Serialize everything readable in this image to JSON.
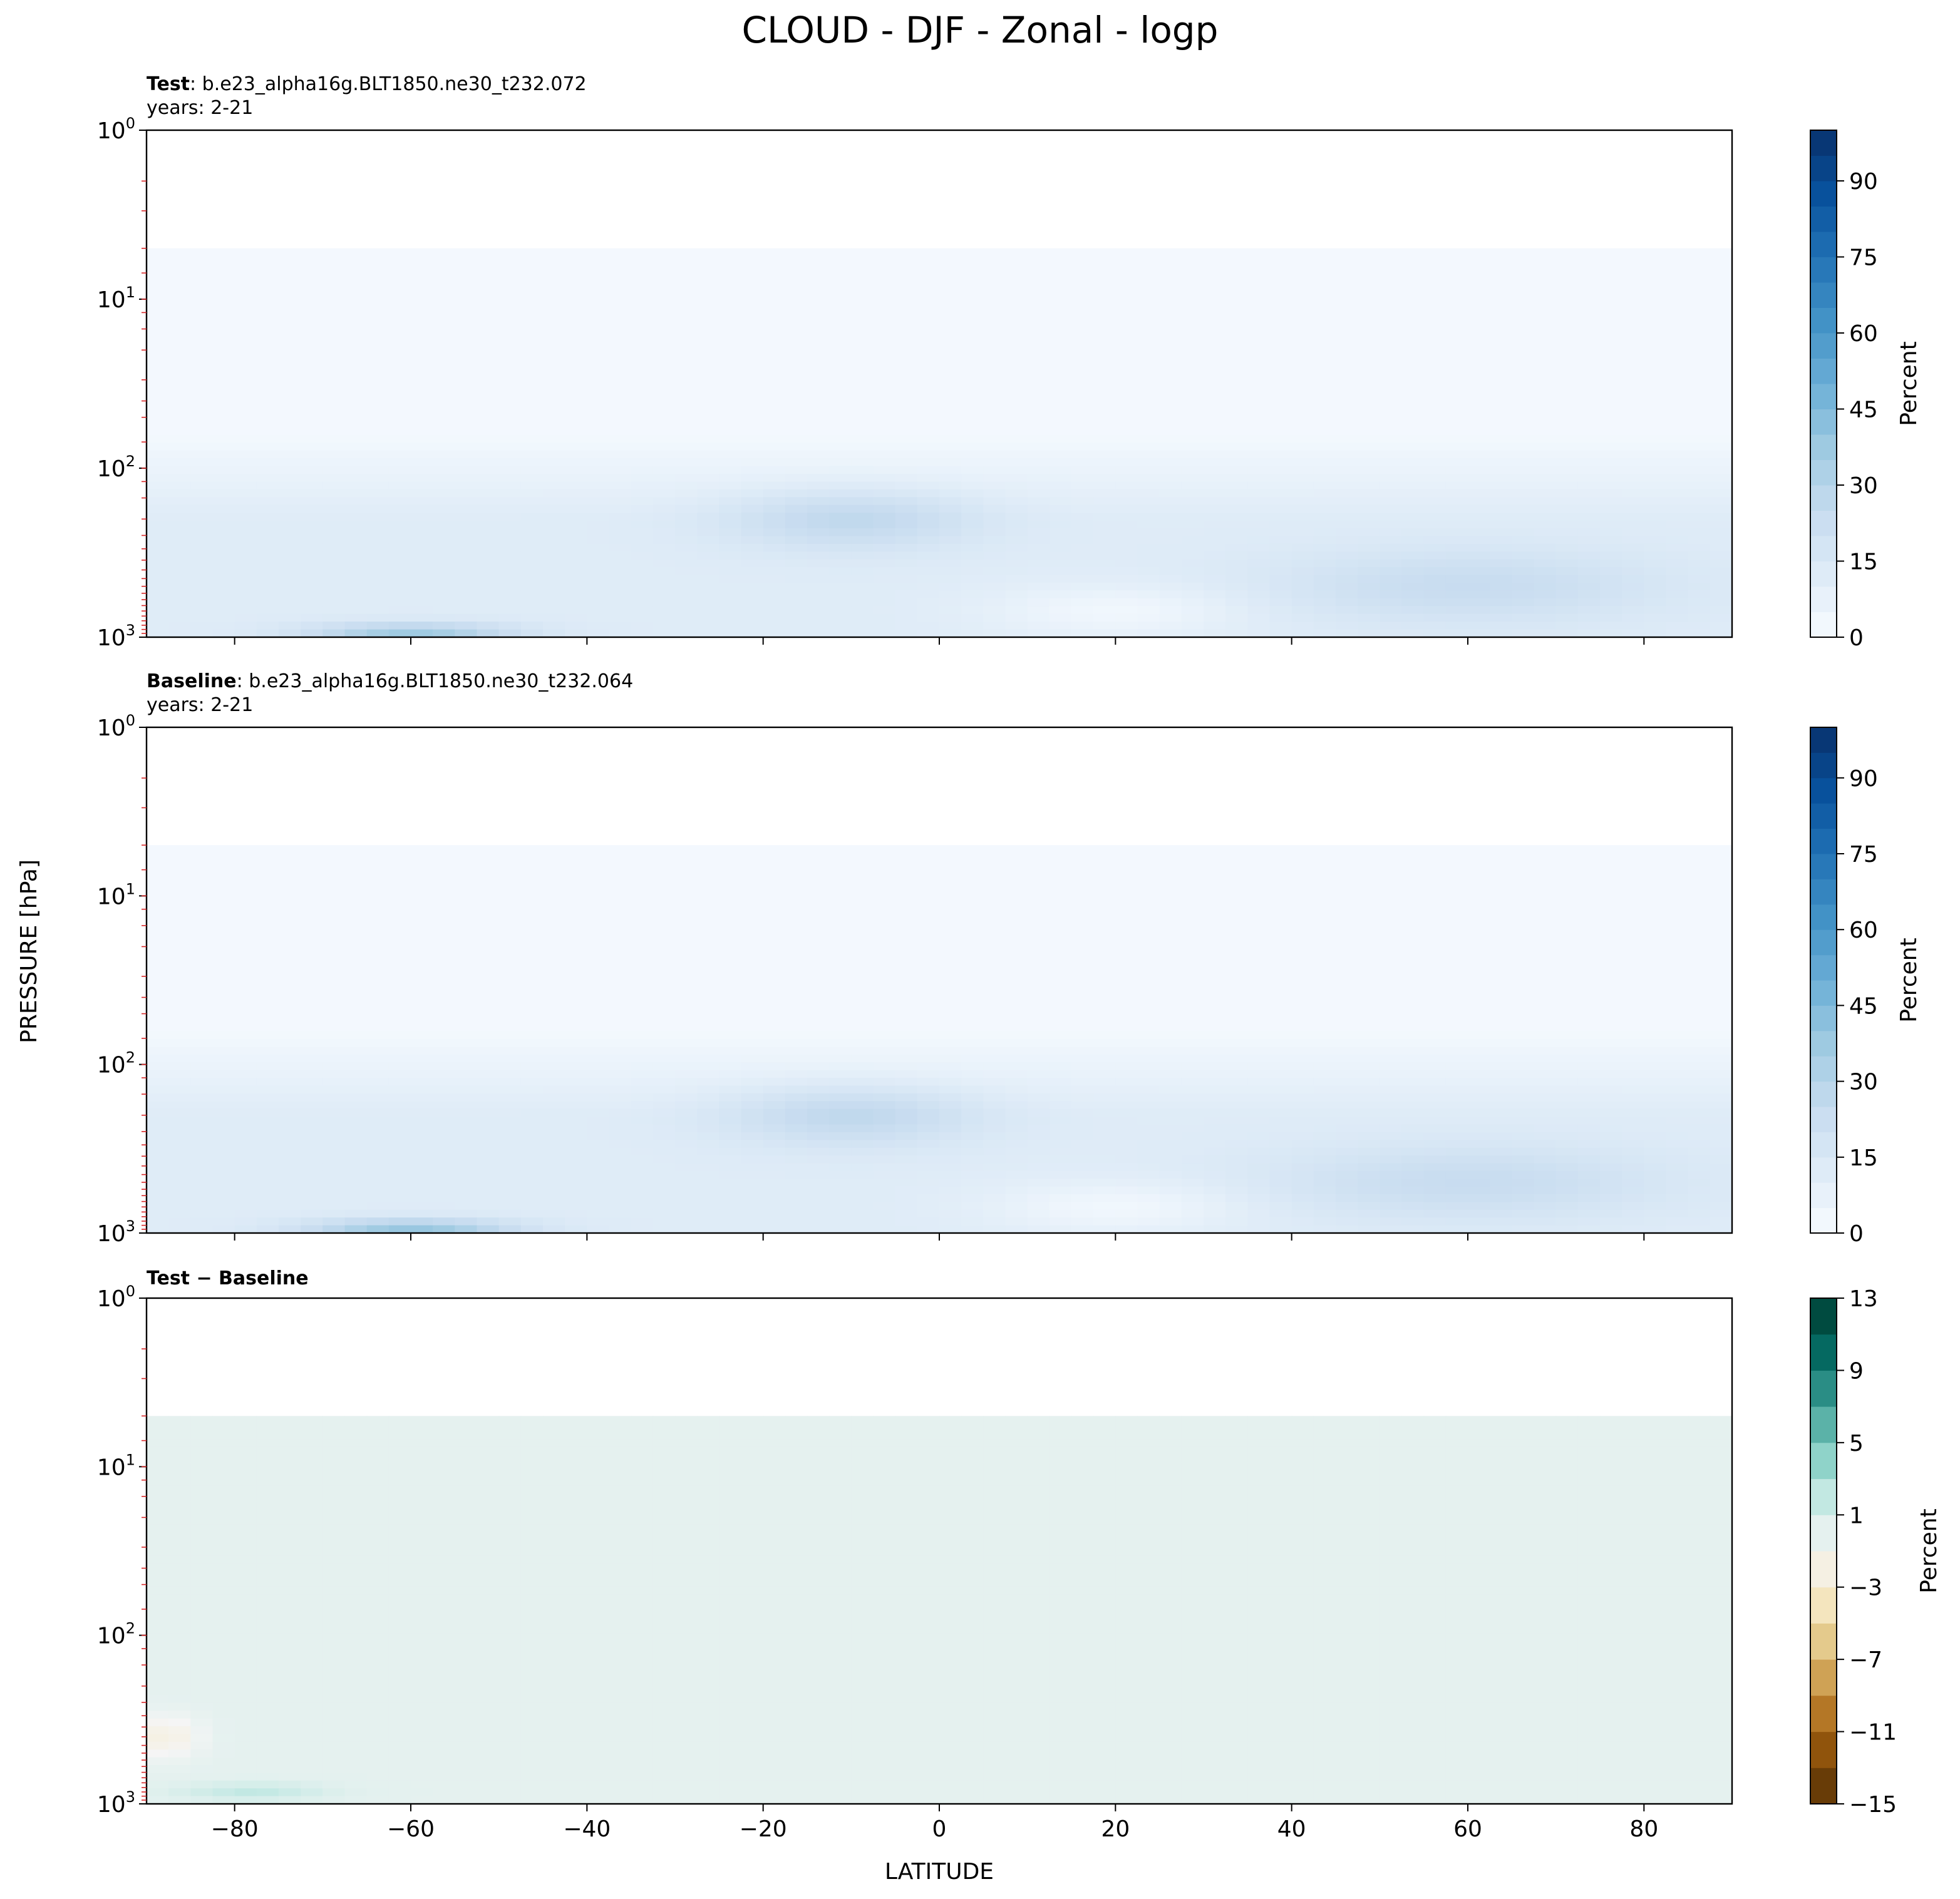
{
  "figure": {
    "title": "CLOUD - DJF - Zonal - logp",
    "ylabel": "PRESSURE [hPa]",
    "xlabel": "LATITUDE"
  },
  "chart_data": [
    {
      "type": "heatmap",
      "panel": "test",
      "title_bold": "Test",
      "title_rest": ": b.e23_alpha16g.BLT1850.ne30_t232.072",
      "subtitle": "years: 2-21",
      "x_range": [
        -90,
        90
      ],
      "y_range_hPa": [
        1000,
        1
      ],
      "y_scale": "log",
      "y_ticks": [
        "10^0",
        "10^1",
        "10^2",
        "10^3"
      ],
      "colormap": "Blues",
      "colorbar": {
        "label": "Percent",
        "range": [
          0,
          100
        ],
        "ticks": [
          0,
          15,
          30,
          45,
          60,
          75,
          90
        ]
      },
      "data_top_hPa": 5,
      "near_zero_level_percent": 2,
      "features": [
        {
          "name": "tropical upper-level cloud",
          "lat_center": -10,
          "p_center_hPa": 200,
          "value_percent": 25
        },
        {
          "name": "southern low cloud",
          "lat_center": -60,
          "p_center_hPa": 950,
          "value_percent": 35
        },
        {
          "name": "northern mid-latitude cloud",
          "lat_center": 60,
          "p_center_hPa": 500,
          "value_percent": 22
        },
        {
          "name": "subtropical minimum",
          "lat_center": 20,
          "p_center_hPa": 700,
          "value_percent": 3
        }
      ]
    },
    {
      "type": "heatmap",
      "panel": "baseline",
      "title_bold": "Baseline",
      "title_rest": ": b.e23_alpha16g.BLT1850.ne30_t232.064",
      "subtitle": "years: 2-21",
      "x_range": [
        -90,
        90
      ],
      "y_range_hPa": [
        1000,
        1
      ],
      "y_scale": "log",
      "y_ticks": [
        "10^0",
        "10^1",
        "10^2",
        "10^3"
      ],
      "colormap": "Blues",
      "colorbar": {
        "label": "Percent",
        "range": [
          0,
          100
        ],
        "ticks": [
          0,
          15,
          30,
          45,
          60,
          75,
          90
        ]
      },
      "data_top_hPa": 5,
      "near_zero_level_percent": 2,
      "features": [
        {
          "name": "tropical upper-level cloud",
          "lat_center": -10,
          "p_center_hPa": 200,
          "value_percent": 25
        },
        {
          "name": "southern low cloud",
          "lat_center": -60,
          "p_center_hPa": 950,
          "value_percent": 37
        },
        {
          "name": "northern mid-latitude cloud",
          "lat_center": 60,
          "p_center_hPa": 500,
          "value_percent": 22
        },
        {
          "name": "subtropical minimum",
          "lat_center": 20,
          "p_center_hPa": 700,
          "value_percent": 3
        }
      ]
    },
    {
      "type": "heatmap",
      "panel": "difference",
      "title_bold": "Test − Baseline",
      "x_range": [
        -90,
        90
      ],
      "x_ticks": [
        -80,
        -60,
        -40,
        -20,
        0,
        20,
        40,
        60,
        80
      ],
      "y_range_hPa": [
        1000,
        1
      ],
      "y_scale": "log",
      "y_ticks": [
        "10^0",
        "10^1",
        "10^2",
        "10^3"
      ],
      "colormap": "BrBG",
      "colorbar": {
        "label": "Percent",
        "range": [
          -15,
          13
        ],
        "ticks": [
          -15,
          -11,
          -7,
          -3,
          1,
          5,
          9,
          13
        ]
      },
      "data_top_hPa": 5,
      "background_value_percent": 0,
      "features": [
        {
          "name": "small negative patch",
          "lat_center": -88,
          "p_center_hPa": 400,
          "value_percent": -2
        },
        {
          "name": "small positive patch",
          "lat_center": -78,
          "p_center_hPa": 850,
          "value_percent": 2
        }
      ]
    }
  ]
}
